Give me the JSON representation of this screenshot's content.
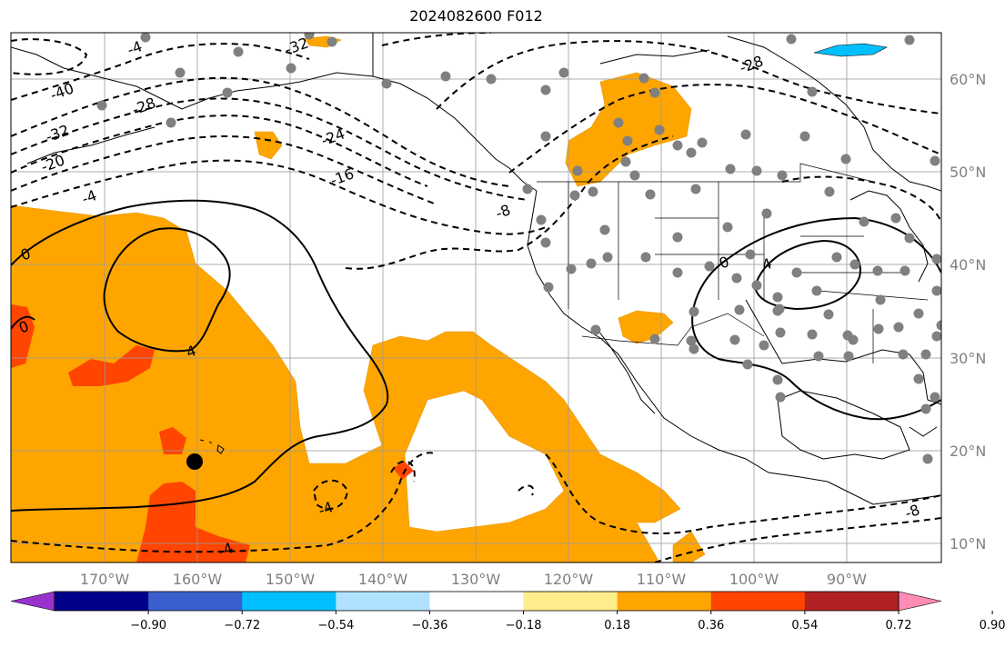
{
  "title": "2024082600 F012",
  "lon_labels": [
    "170°W",
    "160°W",
    "150°W",
    "140°W",
    "130°W",
    "120°W",
    "110°W",
    "100°W",
    "90°W"
  ],
  "lat_labels": [
    "60°N",
    "50°N",
    "40°N",
    "30°N",
    "20°N",
    "10°N"
  ],
  "contour_labels": [
    "-40",
    "-32",
    "-28",
    "-20",
    "-4",
    "-32",
    "-24",
    "-16",
    "-8",
    "-28",
    "0",
    "0",
    "4",
    "0",
    "4",
    "-4",
    "-4",
    "-8",
    "-4"
  ],
  "colorbar": {
    "ticks": [
      "−0.90",
      "−0.72",
      "−0.54",
      "−0.36",
      "−0.18",
      "0.18",
      "0.36",
      "0.54",
      "0.72",
      "0.90"
    ],
    "colors": [
      "#9932cc",
      "#00008b",
      "#3a5fcd",
      "#00bfff",
      "#b0e2ff",
      "#ffffff",
      "#ffec8b",
      "#ffa500",
      "#ff4500",
      "#b22222",
      "#ff8cb4"
    ]
  },
  "marker_icons": [
    "station-dot",
    "hawaii-marker"
  ]
}
